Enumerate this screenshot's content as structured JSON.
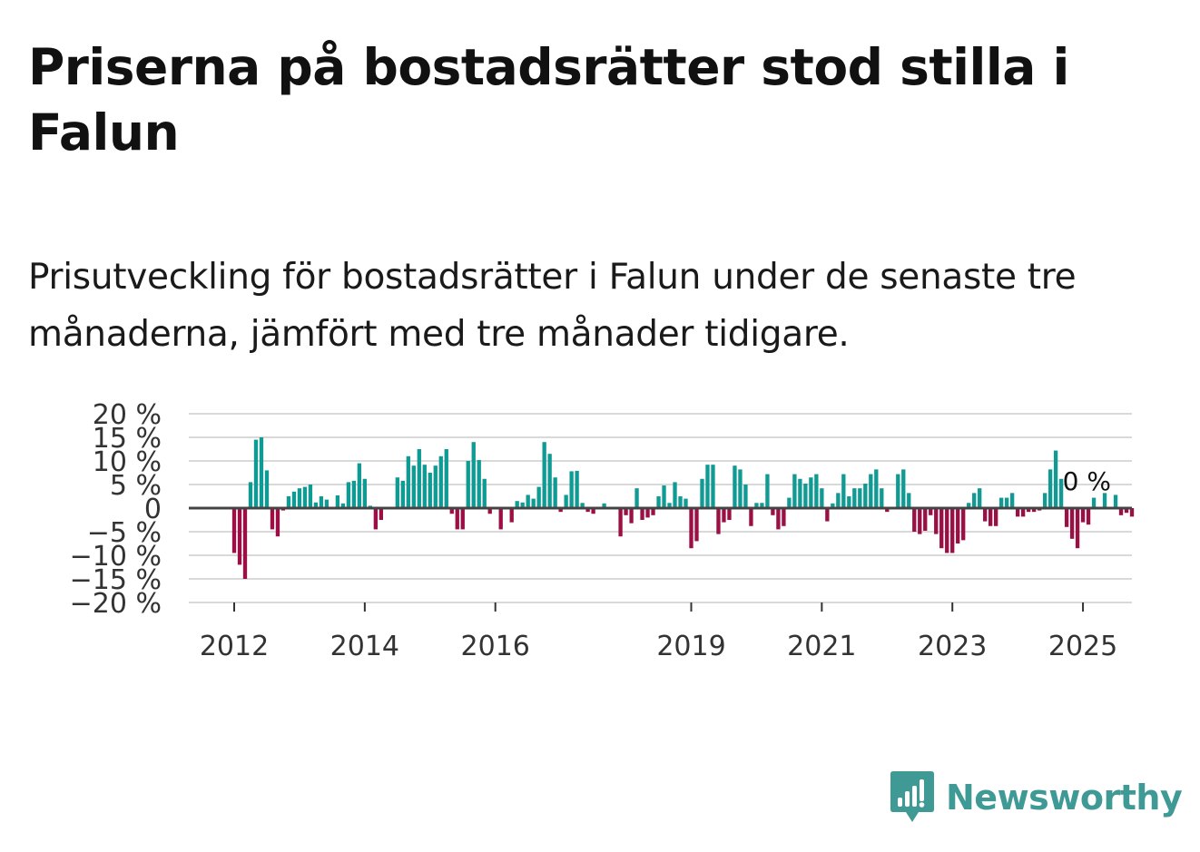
{
  "title": "Priserna på bostadsrätter stod stilla i Falun",
  "subtitle": "Prisutveckling för bostadsrätter i Falun under de senaste tre månaderna, jämfört med tre månader tidigare.",
  "brand": {
    "name": "Newsworthy",
    "icon": "newsworthy-logo-icon"
  },
  "colors": {
    "positive": "#0f9b94",
    "negative": "#9b0f45",
    "zero_line": "#444444",
    "grid": "#d9d9d9",
    "brand": "#3f9a95"
  },
  "chart_data": {
    "type": "bar",
    "title": "",
    "xlabel": "",
    "ylabel": "",
    "ylim": [
      -20,
      20
    ],
    "y_ticks": [
      20,
      15,
      10,
      5,
      0,
      -5,
      -10,
      -15,
      -20
    ],
    "y_tick_labels": [
      "20 %",
      "15 %",
      "10 %",
      "5 %",
      "0",
      "−5 %",
      "−10 %",
      "−15 %",
      "−20 %"
    ],
    "x_tick_labels": [
      "2012",
      "2014",
      "2016",
      "2019",
      "2021",
      "2023",
      "2025"
    ],
    "start": "2012-01",
    "frequency": "monthly",
    "unit": "%",
    "last_value_label": "0 %",
    "values": [
      -9.5,
      -12,
      -15,
      5.5,
      14.5,
      15,
      8,
      -4.5,
      -6,
      -0.5,
      2.5,
      3.5,
      4.2,
      4.5,
      5,
      1.2,
      2.5,
      1.8,
      0,
      2.7,
      1,
      5.5,
      5.8,
      9.5,
      6.2,
      0.5,
      -4.5,
      -2.5,
      0,
      0,
      6.5,
      5.8,
      11,
      9,
      12.5,
      9.2,
      7.5,
      9,
      11,
      12.5,
      -1.2,
      -4.5,
      -4.5,
      10,
      14,
      10.2,
      6.2,
      -1.2,
      0,
      -4.5,
      0,
      -3,
      1.5,
      1.2,
      2.8,
      2,
      4.5,
      14,
      11.5,
      6.5,
      -0.8,
      2.8,
      7.8,
      7.9,
      1.1,
      -0.8,
      -1.2,
      0,
      1,
      0,
      0,
      -6,
      -1.5,
      -3.2,
      4.2,
      -2.5,
      -2,
      -1.5,
      2.5,
      4.8,
      1.1,
      5.5,
      2.5,
      2,
      -8.5,
      -7,
      6.2,
      9.2,
      9.2,
      -5.5,
      -3,
      -2.5,
      9,
      8.2,
      5,
      -3.8,
      1.1,
      1.1,
      7.2,
      -1.5,
      -4.5,
      -3.8,
      2.2,
      7.2,
      6.2,
      5.2,
      6.5,
      7.2,
      4.2,
      -2.8,
      1,
      3.2,
      7.2,
      2.5,
      4.2,
      4.2,
      5.2,
      7.2,
      8.2,
      4.2,
      -0.8,
      0,
      7.2,
      8.2,
      3.2,
      -5,
      -5.5,
      -4.8,
      -1.5,
      -5.5,
      -8.5,
      -9.5,
      -9.5,
      -7.5,
      -6.8,
      1.1,
      3.2,
      4.2,
      -2.8,
      -3.8,
      -3.8,
      2.2,
      2.2,
      3.2,
      -1.8,
      -1.8,
      -0.8,
      -0.8,
      -0.5,
      3.2,
      8.2,
      12.2,
      6.2,
      -4,
      -6.5,
      -8.5,
      -3,
      -3.5,
      2.2,
      0,
      3.2,
      0,
      2.8,
      -1.5,
      -1,
      -1.8,
      0
    ]
  }
}
